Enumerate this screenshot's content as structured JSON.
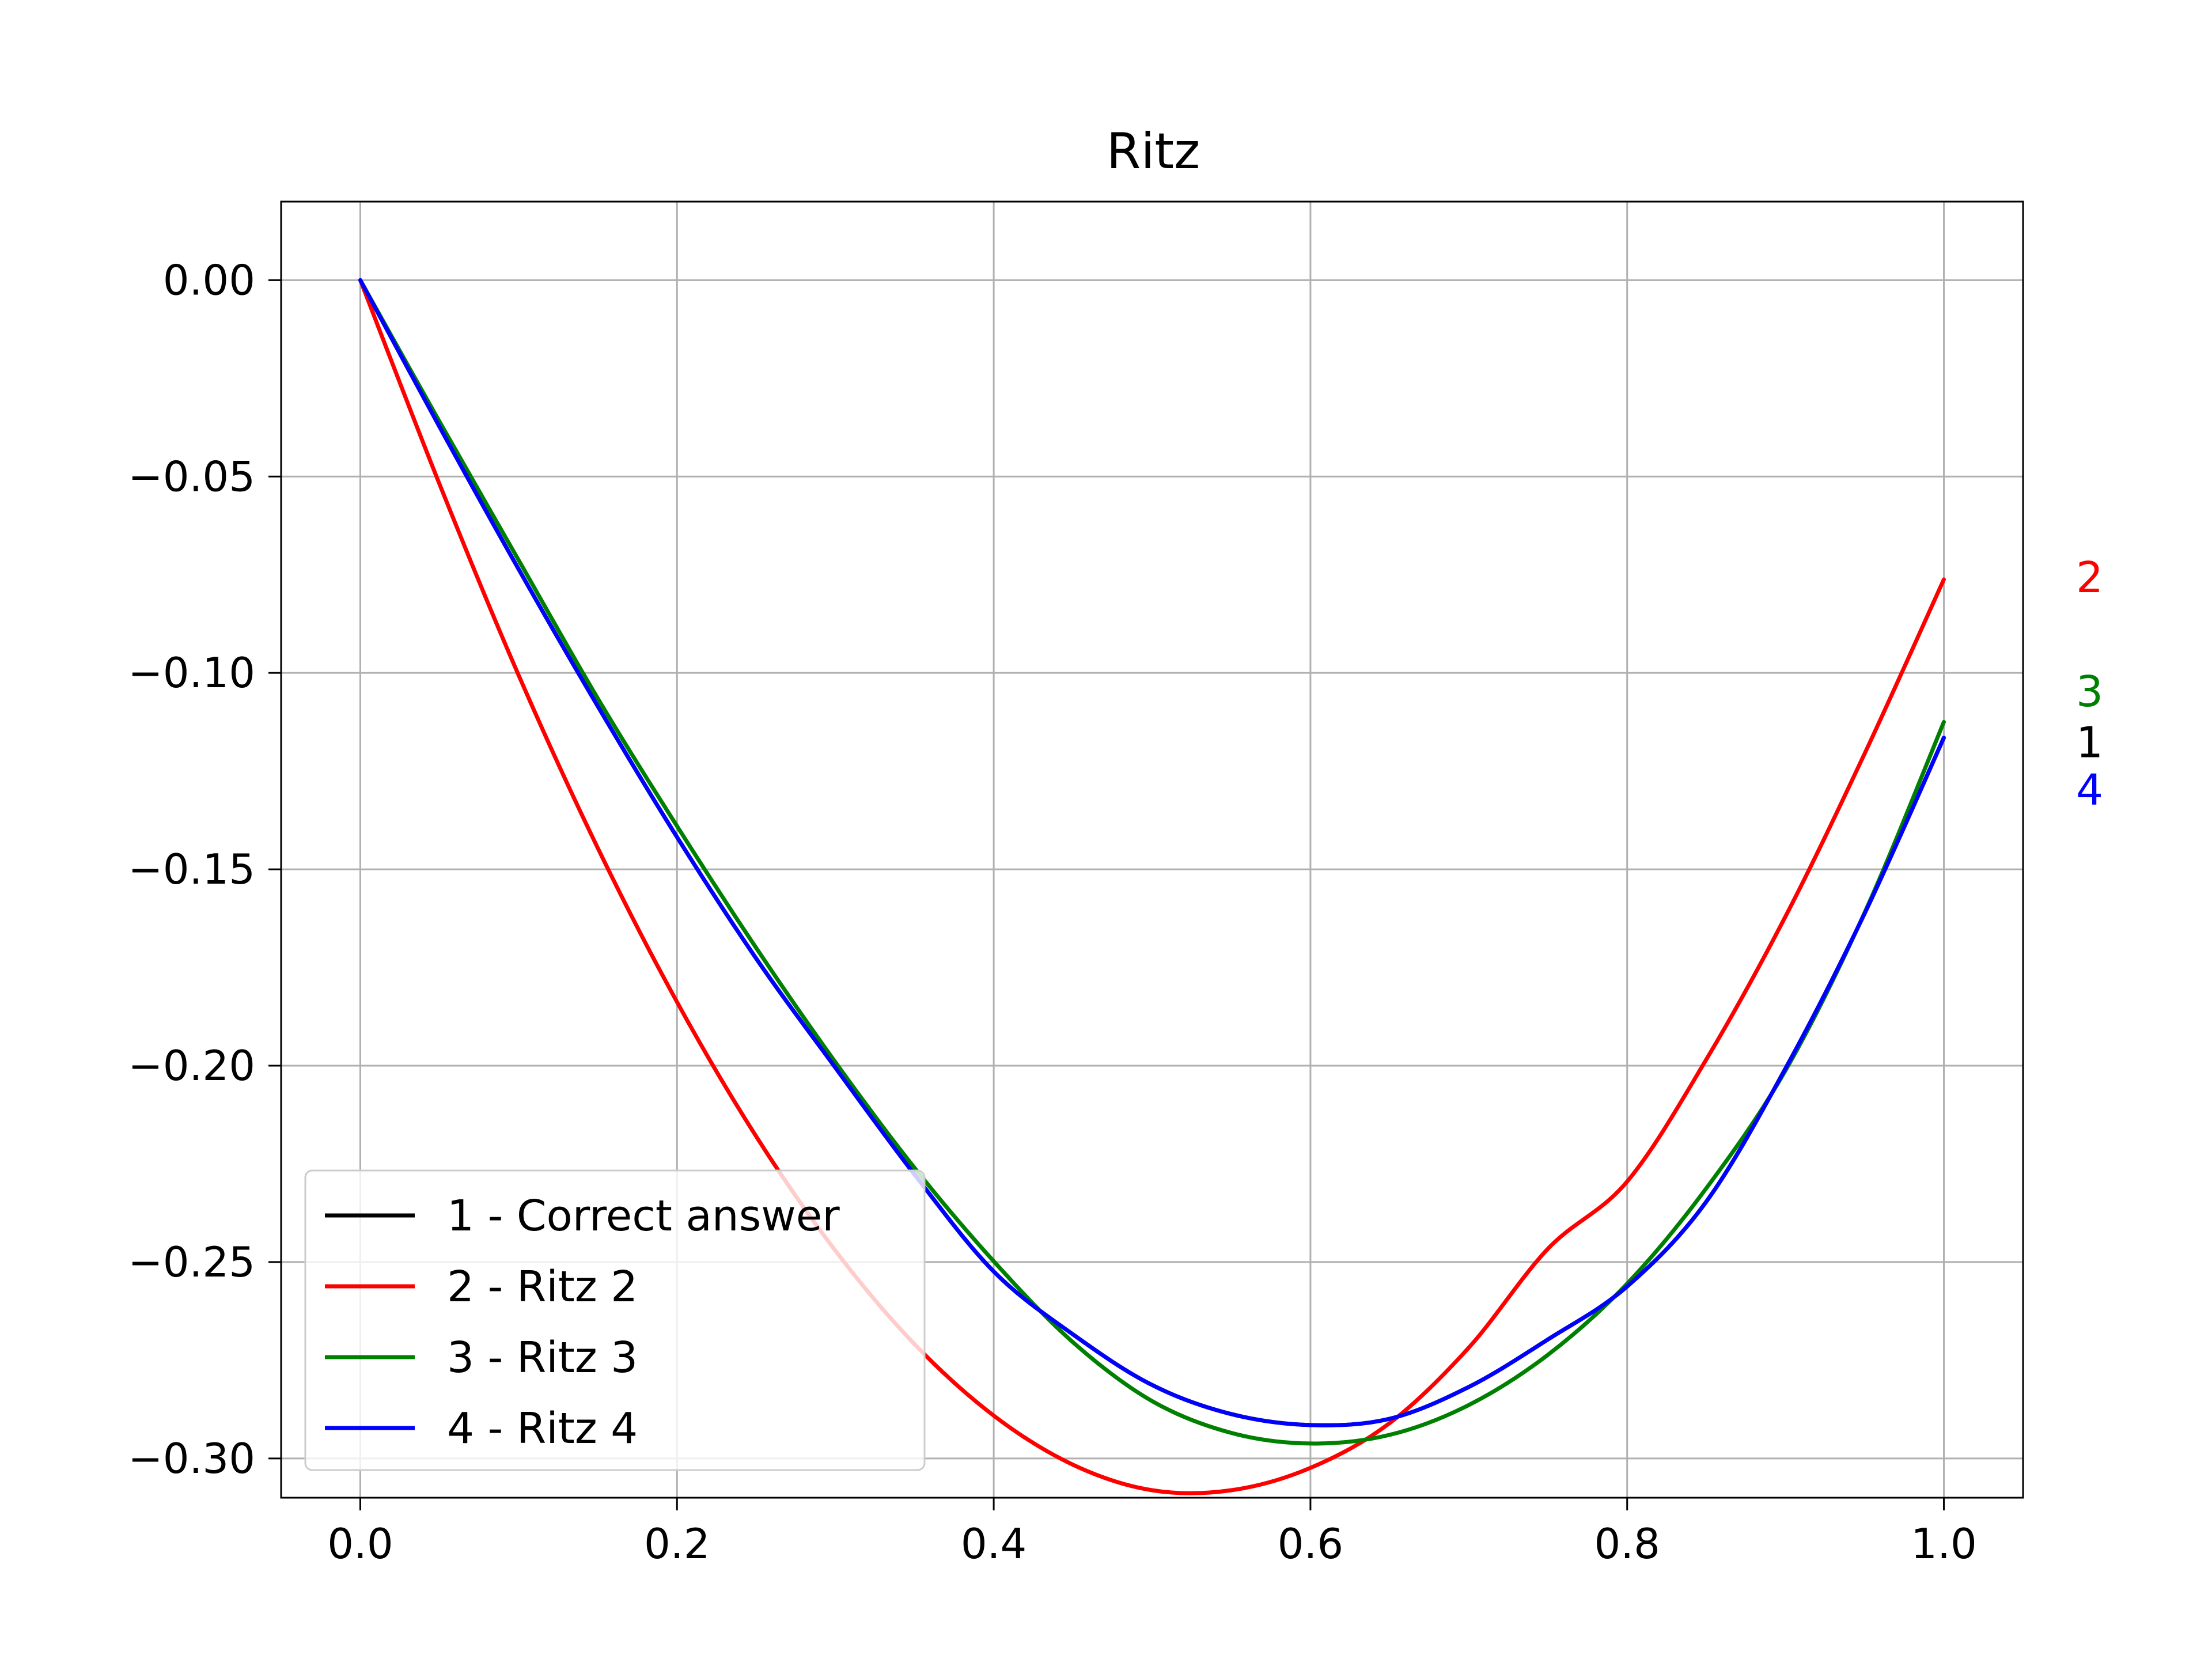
{
  "chart_data": {
    "type": "line",
    "title": "Ritz",
    "xlabel": "",
    "ylabel": "",
    "xlim": [
      -0.05,
      1.05
    ],
    "ylim": [
      -0.31,
      0.02
    ],
    "xticks": [
      0.0,
      0.2,
      0.4,
      0.6,
      0.8,
      1.0
    ],
    "xtick_labels": [
      "0.0",
      "0.2",
      "0.4",
      "0.6",
      "0.8",
      "1.0"
    ],
    "yticks": [
      0.0,
      -0.05,
      -0.1,
      -0.15,
      -0.2,
      -0.25,
      -0.3
    ],
    "ytick_labels": [
      "0.00",
      "−0.05",
      "−0.10",
      "−0.15",
      "−0.20",
      "−0.25",
      "−0.30"
    ],
    "grid": true,
    "legend_position": "lower-left",
    "x": [
      0.0,
      0.05,
      0.1,
      0.15,
      0.2,
      0.25,
      0.3,
      0.35,
      0.4,
      0.45,
      0.5,
      0.55,
      0.6,
      0.65,
      0.7,
      0.75,
      0.8,
      0.85,
      0.9,
      0.95,
      1.0
    ],
    "series": [
      {
        "name": "1 - Correct answer",
        "end_label": "1",
        "color": "#000000",
        "values": [
          0.0,
          -0.0373,
          -0.0736,
          -0.1085,
          -0.1418,
          -0.1727,
          -0.2005,
          -0.2277,
          -0.2524,
          -0.2684,
          -0.2813,
          -0.2887,
          -0.2915,
          -0.2899,
          -0.2818,
          -0.2697,
          -0.2562,
          -0.2346,
          -0.2007,
          -0.1612,
          -0.1165
        ]
      },
      {
        "name": "2 - Ritz 2",
        "end_label": "2",
        "color": "#ff0000",
        "values": [
          0.0,
          -0.0519,
          -0.1006,
          -0.1446,
          -0.1838,
          -0.218,
          -0.2471,
          -0.2709,
          -0.2891,
          -0.3016,
          -0.3081,
          -0.3081,
          -0.3024,
          -0.291,
          -0.2718,
          -0.2466,
          -0.2295,
          -0.1984,
          -0.162,
          -0.1205,
          -0.0762
        ]
      },
      {
        "name": "3 - Ritz 3",
        "end_label": "3",
        "color": "#008000",
        "values": [
          0.0,
          -0.036,
          -0.0713,
          -0.1065,
          -0.139,
          -0.17,
          -0.1991,
          -0.226,
          -0.2498,
          -0.2704,
          -0.2854,
          -0.2935,
          -0.2962,
          -0.294,
          -0.2864,
          -0.2736,
          -0.2555,
          -0.2312,
          -0.2012,
          -0.161,
          -0.1125
        ]
      },
      {
        "name": "4 - Ritz 4",
        "end_label": "4",
        "color": "#0000ff",
        "values": [
          0.0,
          -0.0373,
          -0.0736,
          -0.1085,
          -0.1418,
          -0.1727,
          -0.2005,
          -0.2277,
          -0.2524,
          -0.2684,
          -0.2813,
          -0.2887,
          -0.2915,
          -0.2899,
          -0.2818,
          -0.2697,
          -0.2562,
          -0.2346,
          -0.2007,
          -0.1612,
          -0.1165
        ]
      }
    ],
    "end_label_values": [
      -0.1175,
      -0.0755,
      -0.1045,
      -0.1295
    ]
  }
}
